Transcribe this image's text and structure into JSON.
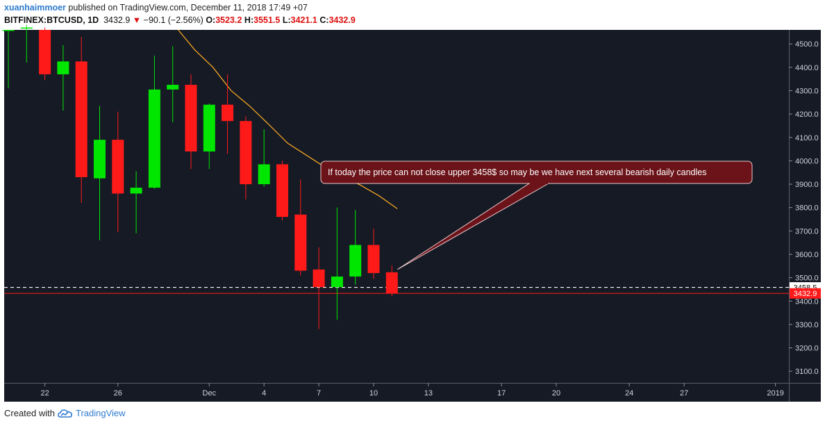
{
  "header": {
    "user": "xuanhaimmoer",
    "published": " published on TradingView.com, December 11, 2018 17:49 +07",
    "symbol": "BITFINEX:BTCUSD, 1D",
    "last": "3432.9",
    "change_arrow": "▼",
    "change": "−90.1 (−2.56%)",
    "o_label": "O:",
    "o": "3523.2",
    "h_label": "H:",
    "h": "3551.5",
    "l_label": "L:",
    "l": "3421.1",
    "c_label": "C:",
    "c": "3432.9"
  },
  "footer": {
    "created_with": "Created with",
    "brand": "TradingView",
    "logo_icon": "tradingview-cloud-icon"
  },
  "colors": {
    "background": "#161a25",
    "bull": "#00e600",
    "bear": "#ff1a1a",
    "ma": "#f5a623",
    "annotation_bg": "#6b1319",
    "price_tag": "#ff1a1a"
  },
  "chart_data": {
    "type": "candlestick",
    "symbol": "BITFINEX:BTCUSD",
    "interval": "1D",
    "ylim": [
      3050,
      4560
    ],
    "y_ticks": [
      3100,
      3200,
      3300,
      3400,
      3500,
      3600,
      3700,
      3800,
      3900,
      4000,
      4100,
      4200,
      4300,
      4400,
      4500
    ],
    "y_tick_labels": [
      "3100.0",
      "3200.0",
      "3300.0",
      "3400.0",
      "3500.0",
      "3600.0",
      "3700.0",
      "3800.0",
      "3900.0",
      "4000.0",
      "4100.0",
      "4200.0",
      "4300.0",
      "4400.0",
      "4500.0"
    ],
    "x_ticks": [
      {
        "label": "22",
        "day": 2
      },
      {
        "label": "26",
        "day": 6
      },
      {
        "label": "Dec",
        "day": 11
      },
      {
        "label": "4",
        "day": 14
      },
      {
        "label": "7",
        "day": 17
      },
      {
        "label": "10",
        "day": 20
      },
      {
        "label": "13",
        "day": 23
      },
      {
        "label": "17",
        "day": 27
      },
      {
        "label": "20",
        "day": 30
      },
      {
        "label": "24",
        "day": 34
      },
      {
        "label": "27",
        "day": 37
      },
      {
        "label": "2019",
        "day": 42
      }
    ],
    "candles": [
      {
        "day": 0,
        "o": 4560,
        "h": 4560,
        "l": 4310,
        "c": 4560
      },
      {
        "day": 1,
        "o": 4570,
        "h": 4580,
        "l": 4420,
        "c": 4570
      },
      {
        "day": 2,
        "o": 4560,
        "h": 4570,
        "l": 4345,
        "c": 4370
      },
      {
        "day": 3,
        "o": 4370,
        "h": 4495,
        "l": 4215,
        "c": 4425
      },
      {
        "day": 4,
        "o": 4425,
        "h": 4530,
        "l": 3820,
        "c": 3930
      },
      {
        "day": 5,
        "o": 3925,
        "h": 4235,
        "l": 3660,
        "c": 4090
      },
      {
        "day": 6,
        "o": 4090,
        "h": 4210,
        "l": 3695,
        "c": 3860
      },
      {
        "day": 7,
        "o": 3860,
        "h": 3955,
        "l": 3690,
        "c": 3885
      },
      {
        "day": 8,
        "o": 3885,
        "h": 4450,
        "l": 3880,
        "c": 4305
      },
      {
        "day": 9,
        "o": 4305,
        "h": 4490,
        "l": 4165,
        "c": 4325
      },
      {
        "day": 10,
        "o": 4325,
        "h": 4370,
        "l": 3965,
        "c": 4040
      },
      {
        "day": 11,
        "o": 4040,
        "h": 4245,
        "l": 3965,
        "c": 4240
      },
      {
        "day": 12,
        "o": 4240,
        "h": 4370,
        "l": 4030,
        "c": 4170
      },
      {
        "day": 13,
        "o": 4170,
        "h": 4190,
        "l": 3835,
        "c": 3900
      },
      {
        "day": 14,
        "o": 3900,
        "h": 4135,
        "l": 3890,
        "c": 3985
      },
      {
        "day": 15,
        "o": 3985,
        "h": 4000,
        "l": 3745,
        "c": 3760
      },
      {
        "day": 16,
        "o": 3770,
        "h": 3920,
        "l": 3510,
        "c": 3530
      },
      {
        "day": 17,
        "o": 3535,
        "h": 3630,
        "l": 3280,
        "c": 3460
      },
      {
        "day": 18,
        "o": 3460,
        "h": 3800,
        "l": 3320,
        "c": 3505
      },
      {
        "day": 19,
        "o": 3505,
        "h": 3790,
        "l": 3470,
        "c": 3640
      },
      {
        "day": 20,
        "o": 3640,
        "h": 3710,
        "l": 3495,
        "c": 3520
      },
      {
        "day": 21,
        "o": 3523.2,
        "h": 3551.5,
        "l": 3421.1,
        "c": 3432.9
      }
    ],
    "ma_series": [
      {
        "day": 9.3,
        "v": 4560
      },
      {
        "day": 10.2,
        "v": 4475
      },
      {
        "day": 11.2,
        "v": 4400
      },
      {
        "day": 12.2,
        "v": 4300
      },
      {
        "day": 13.2,
        "v": 4235
      },
      {
        "day": 14.2,
        "v": 4160
      },
      {
        "day": 15.3,
        "v": 4075
      },
      {
        "day": 16.2,
        "v": 4030
      },
      {
        "day": 17.2,
        "v": 3980
      },
      {
        "day": 18.3,
        "v": 3935
      },
      {
        "day": 19.3,
        "v": 3895
      },
      {
        "day": 20.3,
        "v": 3850
      },
      {
        "day": 21.3,
        "v": 3795
      }
    ],
    "horizontal_lines": [
      {
        "value": 3458.5,
        "label": "3458.5",
        "style": "dashed"
      },
      {
        "value": 3432.9,
        "label": "3432.9",
        "style": "solid"
      }
    ],
    "annotation": {
      "text": "If today the price can not close upper 3458$ so may be we have next several bearish daily candles",
      "target_day": 21.3,
      "target_value": 3535
    }
  }
}
